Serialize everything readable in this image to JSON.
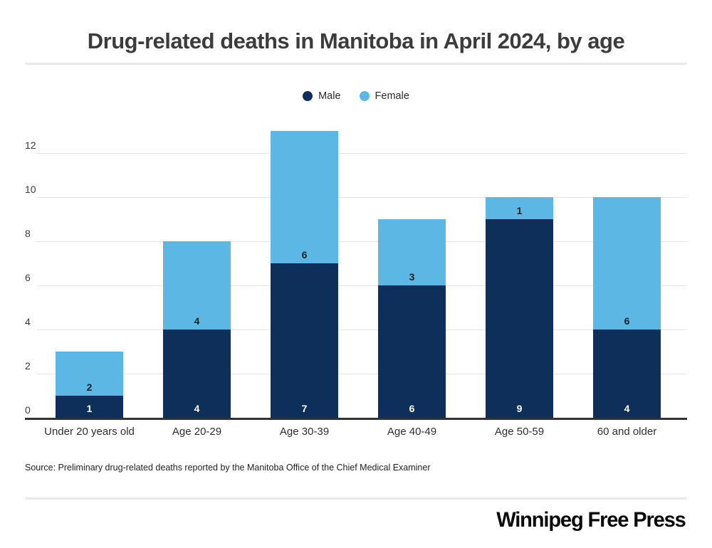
{
  "title": "Drug-related deaths in Manitoba in April 2024, by age",
  "legend": {
    "items": [
      {
        "label": "Male",
        "color": "#0e2f59"
      },
      {
        "label": "Female",
        "color": "#5cb7e5"
      }
    ]
  },
  "source_note": "Source: Preliminary drug-related deaths reported by the Manitoba Office of the Chief Medical Examiner",
  "footer": {
    "brand": "Winnipeg Free Press"
  },
  "colors": {
    "male": "#0e2f59",
    "female": "#5cb7e5",
    "grid": "#e4e4e4",
    "axis": "#333333",
    "male_label_text": "#ffffff",
    "female_label_text": "#1f1f1f"
  },
  "chart_data": {
    "type": "bar",
    "stacked": true,
    "title": "Drug-related deaths in Manitoba in April 2024, by age",
    "categories": [
      "Under 20 years old",
      "Age 20-29",
      "Age 30-39",
      "Age 40-49",
      "Age 50-59",
      "60 and older"
    ],
    "series": [
      {
        "name": "Male",
        "color": "#0e2f59",
        "values": [
          1,
          4,
          7,
          6,
          9,
          4
        ]
      },
      {
        "name": "Female",
        "color": "#5cb7e5",
        "values": [
          2,
          4,
          6,
          3,
          1,
          6
        ]
      }
    ],
    "totals": [
      3,
      8,
      13,
      9,
      10,
      10
    ],
    "xlabel": "",
    "ylabel": "",
    "ylim": [
      0,
      13
    ],
    "yticks": [
      0,
      2,
      4,
      6,
      8,
      10,
      12
    ],
    "grid": true,
    "legend_position": "top"
  }
}
